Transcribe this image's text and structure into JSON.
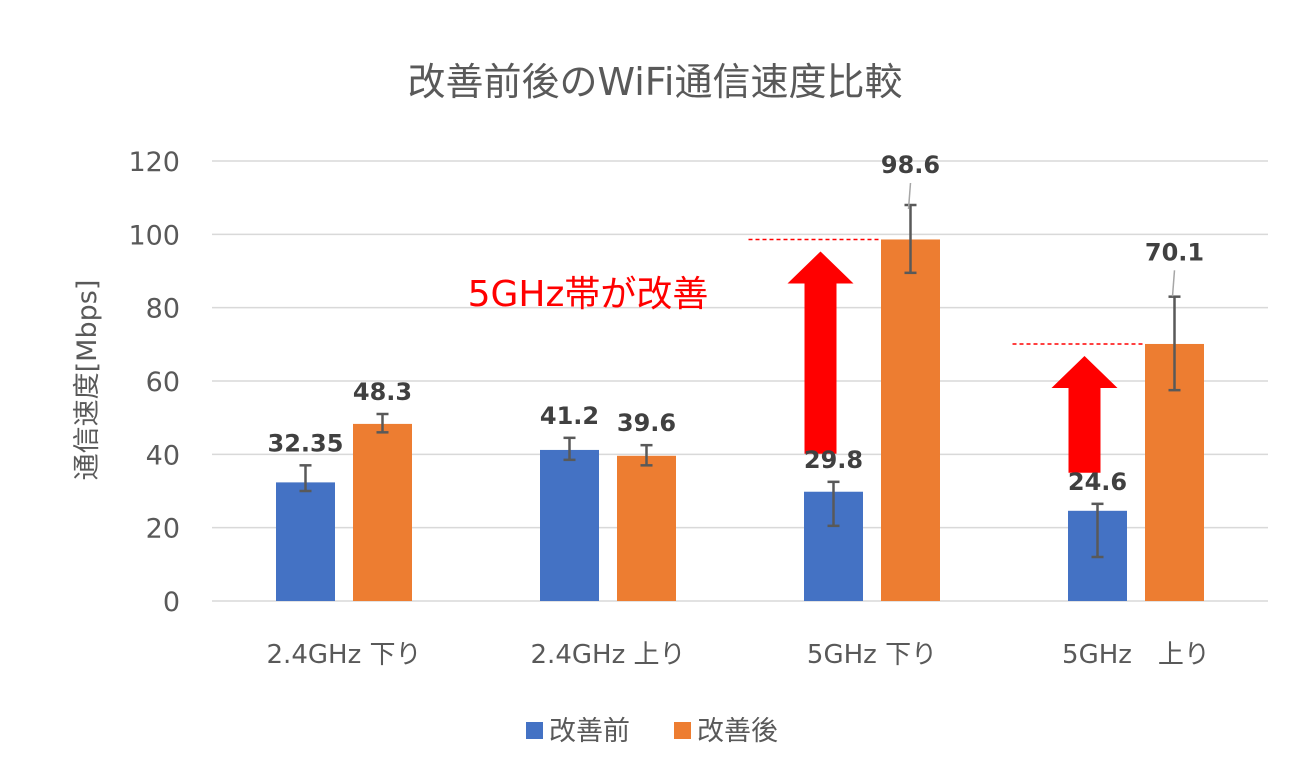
{
  "chart_data": {
    "type": "bar",
    "title": "改善前後のWiFi通信速度比較",
    "xlabel": "",
    "ylabel": "通信速度[Mbps]",
    "ylim": [
      0,
      120
    ],
    "yticks": [
      0,
      20,
      40,
      60,
      80,
      100,
      120
    ],
    "grid": true,
    "legend_position": "bottom",
    "categories": [
      "2.4GHz 下り",
      "2.4GHz 上り",
      "5GHz 下り",
      "5GHz　上り"
    ],
    "series": [
      {
        "name": "改善前",
        "color": "#4472C4",
        "values": [
          32.35,
          41.2,
          29.8,
          24.6
        ],
        "labels": [
          "32.35",
          "41.2",
          "29.8",
          "24.6"
        ],
        "error_low": [
          30,
          38.5,
          20.5,
          12
        ],
        "error_high": [
          37,
          44.5,
          32.5,
          26.5
        ]
      },
      {
        "name": "改善後",
        "color": "#ED7D31",
        "values": [
          48.3,
          39.6,
          98.6,
          70.1
        ],
        "labels": [
          "48.3",
          "39.6",
          "98.6",
          "70.1"
        ],
        "error_low": [
          46,
          37,
          89.5,
          57.5
        ],
        "error_high": [
          51,
          42.5,
          108,
          83
        ]
      }
    ],
    "annotation": {
      "text": "5GHz帯が改善",
      "color": "#FF0000"
    }
  }
}
